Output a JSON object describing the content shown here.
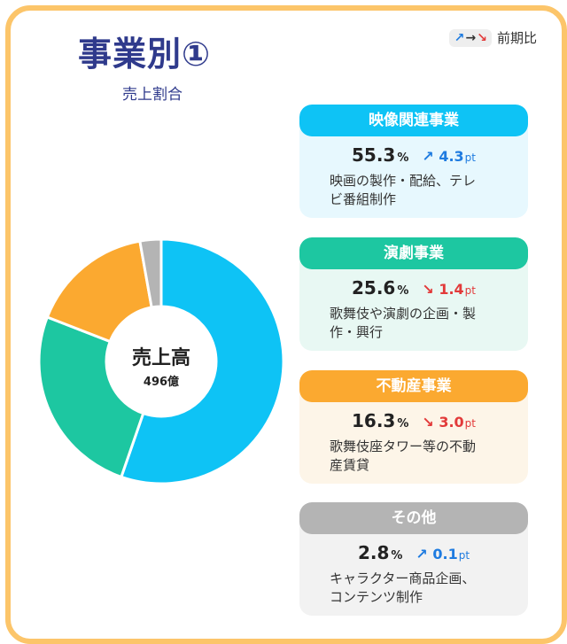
{
  "title": "事業別①",
  "subtitle": "売上割合",
  "legend": {
    "up_arrow": "↗",
    "mid_arrow": "→",
    "down_arrow": "↘",
    "label": "前期比"
  },
  "center": {
    "label": "売上高",
    "value": "496億"
  },
  "colors": {
    "film": "#0ec3f5",
    "theater": "#1dc7a1",
    "realestate": "#fba930",
    "other": "#b4b4b4",
    "frame": "#fcc56a",
    "title": "#2f3a8c"
  },
  "segments": [
    {
      "name": "映像関連事業",
      "share": "55.3",
      "pct_unit": "%",
      "change": "4.3",
      "change_unit": "pt",
      "direction": "up",
      "arrow": "↗",
      "desc": [
        "映画の製作・配給、テレ",
        "ビ番組制作"
      ]
    },
    {
      "name": "演劇事業",
      "share": "25.6",
      "pct_unit": "%",
      "change": "1.4",
      "change_unit": "pt",
      "direction": "down",
      "arrow": "↘",
      "desc": [
        "歌舞伎や演劇の企画・製",
        "作・興行"
      ]
    },
    {
      "name": "不動産事業",
      "share": "16.3",
      "pct_unit": "%",
      "change": "3.0",
      "change_unit": "pt",
      "direction": "down",
      "arrow": "↘",
      "desc": [
        "歌舞伎座タワー等の不動",
        "産賃貸"
      ]
    },
    {
      "name": "その他",
      "share": "2.8",
      "pct_unit": "%",
      "change": "0.1",
      "change_unit": "pt",
      "direction": "up",
      "arrow": "↗",
      "desc": [
        "キャラクター商品企画、",
        "コンテンツ制作"
      ]
    }
  ],
  "chart_data": {
    "type": "pie",
    "title": "売上割合",
    "categories": [
      "映像関連事業",
      "演劇事業",
      "不動産事業",
      "その他"
    ],
    "values": [
      55.3,
      25.6,
      16.3,
      2.8
    ],
    "donut": true,
    "center_text": "売上高 496億"
  }
}
